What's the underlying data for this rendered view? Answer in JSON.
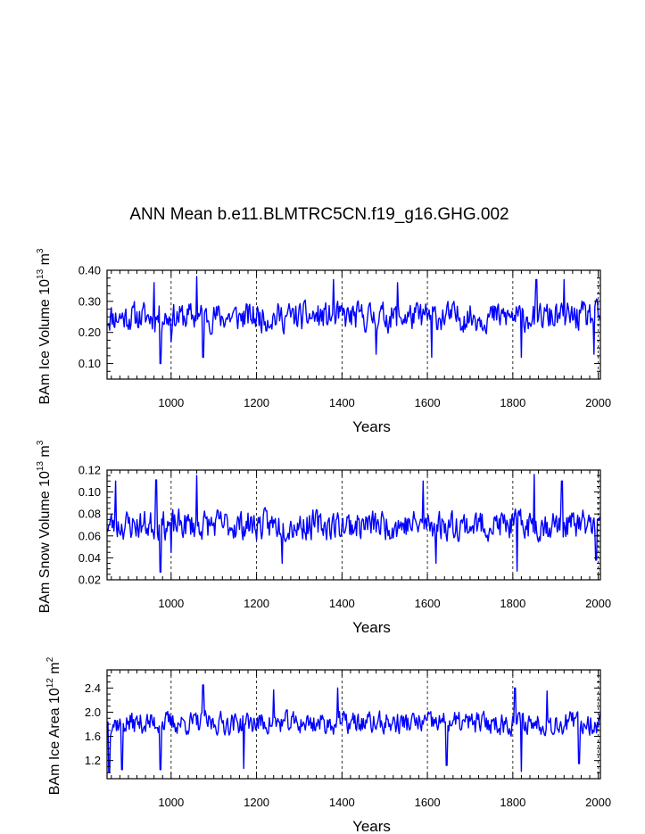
{
  "title": "ANN Mean b.e11.BLMTRC5CN.f19_g16.GHG.002",
  "series_color": "#0000ff",
  "chart_data": [
    {
      "type": "line",
      "id": "ice-volume",
      "ylabel": {
        "main": "BAm Ice Volume 10",
        "exp": "13",
        "unit": " m",
        "unit_exp": "3"
      },
      "xlabel": "Years",
      "xlim": [
        850,
        2005
      ],
      "ylim": [
        0.05,
        0.4
      ],
      "xticks": [
        1000,
        1200,
        1400,
        1600,
        1800,
        2000
      ],
      "yticks": [
        0.1,
        0.2,
        0.3,
        0.4
      ],
      "ytick_labels": [
        "0.10",
        "0.20",
        "0.30",
        "0.40"
      ],
      "mean": 0.25,
      "amplitude": 0.055,
      "dips": [
        [
          975,
          0.1
        ],
        [
          1000,
          0.17
        ],
        [
          1075,
          0.12
        ],
        [
          1480,
          0.13
        ],
        [
          1610,
          0.12
        ],
        [
          1820,
          0.12
        ],
        [
          1990,
          0.13
        ]
      ],
      "spikes": [
        [
          960,
          0.36
        ],
        [
          1060,
          0.38
        ],
        [
          1380,
          0.37
        ],
        [
          1530,
          0.36
        ],
        [
          1855,
          0.37
        ],
        [
          1920,
          0.37
        ]
      ],
      "seed": 11
    },
    {
      "type": "line",
      "id": "snow-volume",
      "ylabel": {
        "main": "BAm Snow Volume 10",
        "exp": "13",
        "unit": " m",
        "unit_exp": "3"
      },
      "xlabel": "Years",
      "xlim": [
        850,
        2005
      ],
      "ylim": [
        0.02,
        0.12
      ],
      "xticks": [
        1000,
        1200,
        1400,
        1600,
        1800,
        2000
      ],
      "yticks": [
        0.02,
        0.04,
        0.06,
        0.08,
        0.1,
        0.12
      ],
      "ytick_labels": [
        "0.02",
        "0.04",
        "0.06",
        "0.08",
        "0.10",
        "0.12"
      ],
      "mean": 0.07,
      "amplitude": 0.016,
      "dips": [
        [
          975,
          0.027
        ],
        [
          1000,
          0.045
        ],
        [
          1260,
          0.035
        ],
        [
          1620,
          0.035
        ],
        [
          1810,
          0.028
        ],
        [
          1995,
          0.038
        ]
      ],
      "spikes": [
        [
          870,
          0.11
        ],
        [
          965,
          0.111
        ],
        [
          1060,
          0.115
        ],
        [
          1590,
          0.11
        ],
        [
          1850,
          0.116
        ],
        [
          1915,
          0.11
        ]
      ],
      "seed": 23
    },
    {
      "type": "line",
      "id": "ice-area",
      "ylabel": {
        "main": "BAm Ice Area 10",
        "exp": "12",
        "unit": " m",
        "unit_exp": "2"
      },
      "xlabel": "Years",
      "xlim": [
        850,
        2005
      ],
      "ylim": [
        0.9,
        2.7
      ],
      "xticks": [
        1000,
        1200,
        1400,
        1600,
        1800,
        2000
      ],
      "yticks": [
        1.2,
        1.6,
        2.0,
        2.4
      ],
      "ytick_labels": [
        "1.2",
        "1.6",
        "2.0",
        "2.4"
      ],
      "mean": 1.82,
      "amplitude": 0.22,
      "dips": [
        [
          855,
          1.0
        ],
        [
          885,
          1.05
        ],
        [
          975,
          1.05
        ],
        [
          1170,
          1.07
        ],
        [
          1645,
          1.12
        ],
        [
          1820,
          1.02
        ],
        [
          1955,
          1.15
        ]
      ],
      "spikes": [
        [
          1075,
          2.45
        ],
        [
          1240,
          2.37
        ],
        [
          1390,
          2.4
        ],
        [
          1805,
          2.4
        ],
        [
          1880,
          2.35
        ]
      ],
      "seed": 37
    }
  ]
}
